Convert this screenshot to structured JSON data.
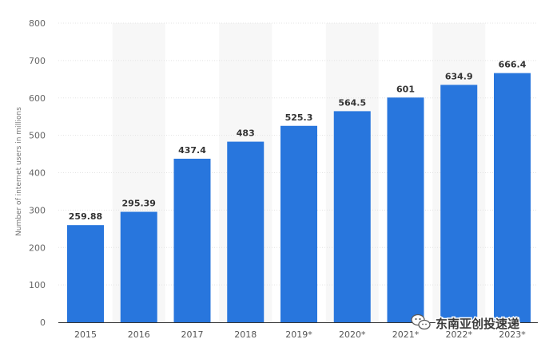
{
  "chart_data": {
    "type": "bar",
    "categories": [
      "2015",
      "2016",
      "2017",
      "2018",
      "2019*",
      "2020*",
      "2021*",
      "2022*",
      "2023*"
    ],
    "values": [
      259.88,
      295.39,
      437.4,
      483,
      525.3,
      564.5,
      601,
      634.9,
      666.4
    ],
    "value_labels": [
      "259.88",
      "295.39",
      "437.4",
      "483",
      "525.3",
      "564.5",
      "601",
      "634.9",
      "666.4"
    ],
    "title": "",
    "xlabel": "",
    "ylabel": "Number of internet users in millions",
    "ylim": [
      0,
      800
    ],
    "yticks": [
      0,
      100,
      200,
      300,
      400,
      500,
      600,
      700,
      800
    ],
    "grid": "horizontal",
    "bar_color": "#2876dd",
    "band_color": "#f7f7f7"
  },
  "watermark": {
    "text": "东南亚创投速递",
    "icon": "wechat-icon"
  }
}
